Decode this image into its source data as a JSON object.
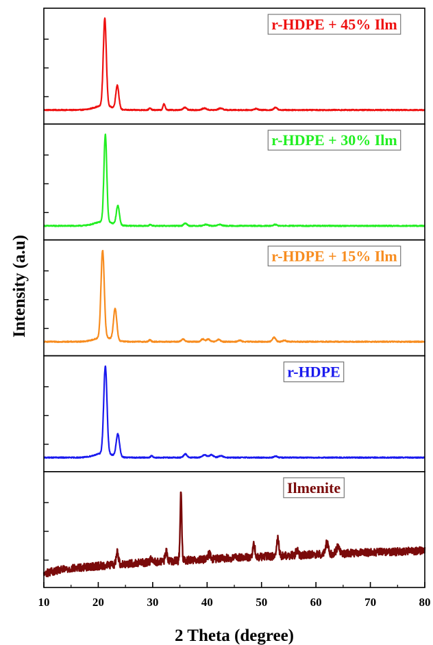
{
  "chart_data": {
    "type": "line",
    "xlabel": "2 Theta (degree)",
    "ylabel": "Intensity (a.u)",
    "xlim": [
      10,
      80
    ],
    "xticks": [
      10,
      20,
      30,
      40,
      50,
      60,
      70,
      80
    ],
    "grid": false,
    "stacked_panels": true,
    "series": [
      {
        "name": "r-HDPE + 45% Ilm",
        "color": "#ee1111",
        "legend_position": "top-right",
        "baseline": 0.02,
        "peaks": [
          [
            21.2,
            1.0,
            0.28
          ],
          [
            23.5,
            0.27,
            0.28
          ],
          [
            29.5,
            0.02,
            0.2
          ],
          [
            32.1,
            0.07,
            0.2
          ],
          [
            35.9,
            0.03,
            0.3
          ],
          [
            39.5,
            0.02,
            0.4
          ],
          [
            42.5,
            0.02,
            0.4
          ],
          [
            49.0,
            0.015,
            0.3
          ],
          [
            52.6,
            0.03,
            0.3
          ]
        ]
      },
      {
        "name": "r-HDPE + 30% Ilm",
        "color": "#22ee22",
        "legend_position": "top-right",
        "baseline": 0.02,
        "peaks": [
          [
            21.3,
            1.0,
            0.26
          ],
          [
            23.6,
            0.22,
            0.28
          ],
          [
            29.6,
            0.015,
            0.2
          ],
          [
            36.0,
            0.03,
            0.3
          ],
          [
            39.8,
            0.015,
            0.4
          ],
          [
            42.3,
            0.015,
            0.4
          ],
          [
            52.5,
            0.015,
            0.3
          ]
        ]
      },
      {
        "name": "r-HDPE + 15% Ilm",
        "color": "#f78c1f",
        "legend_position": "top-right",
        "baseline": 0.02,
        "peaks": [
          [
            20.8,
            1.0,
            0.3
          ],
          [
            23.1,
            0.36,
            0.3
          ],
          [
            29.5,
            0.02,
            0.2
          ],
          [
            35.6,
            0.03,
            0.3
          ],
          [
            39.2,
            0.03,
            0.3
          ],
          [
            40.2,
            0.03,
            0.3
          ],
          [
            42.1,
            0.025,
            0.3
          ],
          [
            46.0,
            0.015,
            0.3
          ],
          [
            52.3,
            0.05,
            0.3
          ],
          [
            54.2,
            0.015,
            0.3
          ]
        ]
      },
      {
        "name": "r-HDPE",
        "color": "#1a1aee",
        "legend_position": "top-right",
        "baseline": 0.02,
        "peaks": [
          [
            21.3,
            1.0,
            0.3
          ],
          [
            23.6,
            0.26,
            0.3
          ],
          [
            29.8,
            0.02,
            0.2
          ],
          [
            36.0,
            0.04,
            0.3
          ],
          [
            39.5,
            0.03,
            0.4
          ],
          [
            40.8,
            0.03,
            0.4
          ],
          [
            42.5,
            0.02,
            0.4
          ],
          [
            52.6,
            0.015,
            0.3
          ]
        ]
      },
      {
        "name": "Ilmenite",
        "color": "#7a0a0a",
        "legend_position": "top-right",
        "baseline_start": 0.0,
        "baseline_end": 0.28,
        "peaks": [
          [
            23.5,
            0.15,
            0.2
          ],
          [
            29.8,
            0.05,
            0.2
          ],
          [
            32.5,
            0.11,
            0.2
          ],
          [
            35.2,
            0.8,
            0.15
          ],
          [
            40.4,
            0.06,
            0.2
          ],
          [
            48.6,
            0.14,
            0.2
          ],
          [
            53.0,
            0.2,
            0.2
          ],
          [
            56.5,
            0.06,
            0.2
          ],
          [
            62.0,
            0.12,
            0.3
          ],
          [
            64.0,
            0.07,
            0.3
          ]
        ]
      }
    ]
  }
}
